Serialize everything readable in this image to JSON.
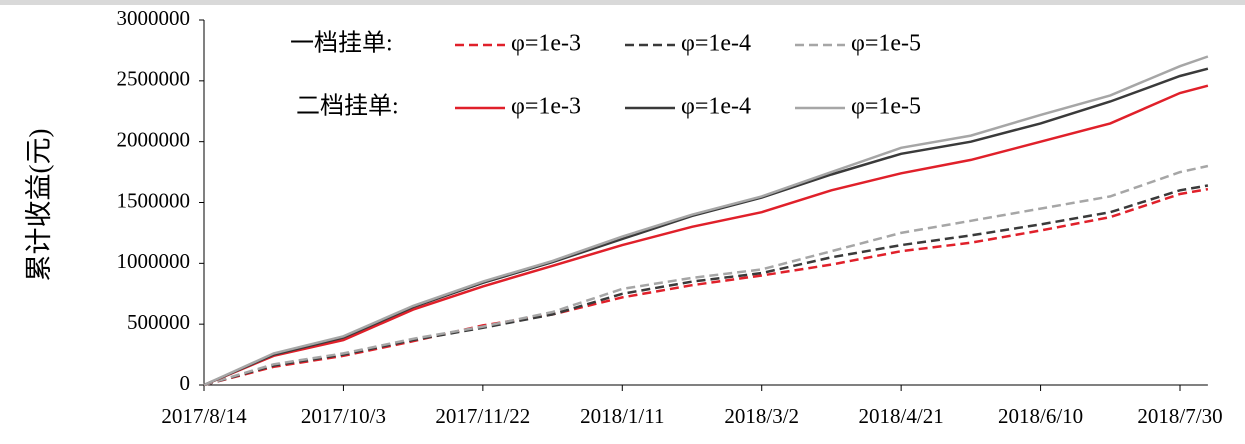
{
  "chart_data": {
    "type": "line",
    "y_label": "累计收益(元)",
    "legend_groups": [
      "一档挂单:",
      "二档挂单:"
    ],
    "x": [
      "2017/8/14",
      "2017/9/8",
      "2017/10/3",
      "2017/10/28",
      "2017/11/22",
      "2017/12/17",
      "2018/1/11",
      "2018/2/5",
      "2018/3/2",
      "2018/3/27",
      "2018/4/21",
      "2018/5/16",
      "2018/6/10",
      "2018/7/5",
      "2018/7/30",
      "2018/8/9"
    ],
    "xlim": [
      "2017/8/14",
      "2018/8/9"
    ],
    "xticks": [
      "2017/8/14",
      "2017/10/3",
      "2017/11/22",
      "2018/1/11",
      "2018/3/2",
      "2018/4/21",
      "2018/6/10",
      "2018/7/30"
    ],
    "ylim": [
      0,
      3000000
    ],
    "yticks": [
      0,
      500000,
      1000000,
      1500000,
      2000000,
      2500000,
      3000000
    ],
    "series": [
      {
        "name": "φ=1e-3",
        "group": 0,
        "dash": true,
        "color": "#e0202a",
        "values": [
          0,
          150000,
          240000,
          360000,
          490000,
          580000,
          720000,
          820000,
          900000,
          990000,
          1100000,
          1170000,
          1270000,
          1380000,
          1570000,
          1610000
        ]
      },
      {
        "name": "φ=1e-4",
        "group": 0,
        "dash": true,
        "color": "#3a3a3a",
        "values": [
          0,
          160000,
          250000,
          370000,
          470000,
          580000,
          750000,
          850000,
          920000,
          1050000,
          1150000,
          1230000,
          1320000,
          1420000,
          1600000,
          1640000
        ]
      },
      {
        "name": "φ=1e-5",
        "group": 0,
        "dash": true,
        "color": "#a6a6a6",
        "values": [
          0,
          170000,
          260000,
          380000,
          480000,
          600000,
          790000,
          880000,
          950000,
          1100000,
          1250000,
          1350000,
          1450000,
          1550000,
          1750000,
          1800000
        ]
      },
      {
        "name": "φ=1e-3",
        "group": 1,
        "dash": false,
        "color": "#e0202a",
        "values": [
          0,
          240000,
          370000,
          620000,
          810000,
          980000,
          1150000,
          1300000,
          1420000,
          1600000,
          1740000,
          1850000,
          2000000,
          2150000,
          2400000,
          2460000
        ]
      },
      {
        "name": "φ=1e-4",
        "group": 1,
        "dash": false,
        "color": "#3a3a3a",
        "values": [
          0,
          250000,
          390000,
          640000,
          840000,
          1010000,
          1200000,
          1390000,
          1540000,
          1730000,
          1900000,
          2000000,
          2150000,
          2330000,
          2540000,
          2600000
        ]
      },
      {
        "name": "φ=1e-5",
        "group": 1,
        "dash": false,
        "color": "#a6a6a6",
        "values": [
          0,
          260000,
          400000,
          650000,
          850000,
          1020000,
          1220000,
          1400000,
          1550000,
          1750000,
          1950000,
          2050000,
          2220000,
          2380000,
          2620000,
          2700000
        ]
      }
    ]
  }
}
